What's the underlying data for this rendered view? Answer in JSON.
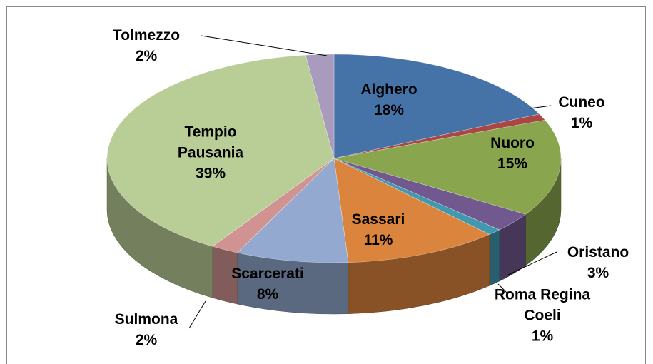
{
  "chart_data": {
    "type": "pie3d",
    "categories": [
      "Alghero",
      "Cuneo",
      "Nuoro",
      "Oristano",
      "Roma Regina Coeli",
      "Sassari",
      "Scarcerati",
      "Sulmona",
      "Tempio Pausania",
      "Tolmezzo"
    ],
    "values": [
      18,
      1,
      15,
      3,
      1,
      11,
      8,
      2,
      39,
      2
    ],
    "value_labels": [
      "18%",
      "1%",
      "15%",
      "3%",
      "1%",
      "11%",
      "8%",
      "2%",
      "39%",
      "2%"
    ],
    "colors": [
      "#4572a7",
      "#aa4643",
      "#89a54e",
      "#71588f",
      "#4198af",
      "#db843d",
      "#93a9cf",
      "#d19392",
      "#b9cd96",
      "#a99bbd"
    ]
  }
}
